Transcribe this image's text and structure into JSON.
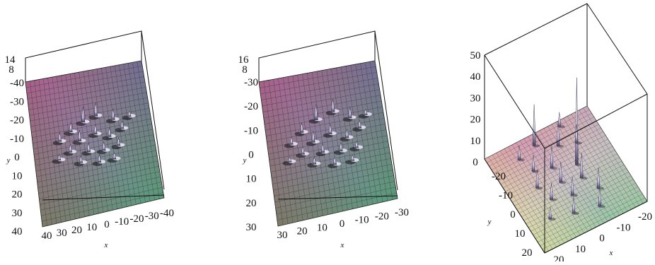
{
  "chart_data": [
    {
      "type": "surface3d",
      "xlabel": "x",
      "ylabel": "y",
      "x_ticks": [
        "40",
        "30",
        "20",
        "10",
        "0",
        "-10",
        "-20",
        "-30",
        "-40"
      ],
      "y_ticks": [
        "-40",
        "-30",
        "-20",
        "-10",
        "0",
        "10",
        "20",
        "30",
        "40"
      ],
      "z_ticks": [
        "14",
        "8"
      ],
      "xlim": [
        -40,
        40
      ],
      "ylim": [
        -40,
        40
      ],
      "zlim": [
        0,
        14
      ],
      "peaks": [
        {
          "x": 5,
          "y": -12,
          "z": 14
        },
        {
          "x": -4,
          "y": -14,
          "z": 12
        },
        {
          "x": -15,
          "y": -10,
          "z": 10
        },
        {
          "x": 14,
          "y": -8,
          "z": 9
        },
        {
          "x": 22,
          "y": -4,
          "z": 8
        },
        {
          "x": 9,
          "y": -2,
          "z": 10
        },
        {
          "x": -2,
          "y": -4,
          "z": 9
        },
        {
          "x": -11,
          "y": -1,
          "z": 8
        },
        {
          "x": -20,
          "y": -4,
          "z": 7
        },
        {
          "x": 16,
          "y": 3,
          "z": 7
        },
        {
          "x": 4,
          "y": 5,
          "z": 8
        },
        {
          "x": -6,
          "y": 6,
          "z": 8
        },
        {
          "x": -16,
          "y": 5,
          "z": 7
        },
        {
          "x": 10,
          "y": 10,
          "z": 6
        },
        {
          "x": -2,
          "y": 12,
          "z": 7
        },
        {
          "x": -12,
          "y": 12,
          "z": 6
        },
        {
          "x": 24,
          "y": 6,
          "z": 5
        },
        {
          "x": -26,
          "y": -10,
          "z": 5
        }
      ]
    },
    {
      "type": "surface3d",
      "xlabel": "x",
      "ylabel": "y",
      "x_ticks": [
        "30",
        "20",
        "10",
        "0",
        "-10",
        "-20",
        "-30"
      ],
      "y_ticks": [
        "-30",
        "-20",
        "-10",
        "0",
        "10",
        "20",
        "30"
      ],
      "z_ticks": [
        "16",
        "8"
      ],
      "xlim": [
        -30,
        30
      ],
      "ylim": [
        -30,
        30
      ],
      "zlim": [
        0,
        16
      ],
      "peaks": [
        {
          "x": 4,
          "y": -10,
          "z": 16
        },
        {
          "x": -5,
          "y": -12,
          "z": 13
        },
        {
          "x": -13,
          "y": -8,
          "z": 11
        },
        {
          "x": 12,
          "y": -6,
          "z": 10
        },
        {
          "x": 18,
          "y": -2,
          "z": 8
        },
        {
          "x": 7,
          "y": -1,
          "z": 12
        },
        {
          "x": -2,
          "y": -3,
          "z": 10
        },
        {
          "x": -10,
          "y": 0,
          "z": 9
        },
        {
          "x": -17,
          "y": -3,
          "z": 8
        },
        {
          "x": 13,
          "y": 3,
          "z": 8
        },
        {
          "x": 3,
          "y": 4,
          "z": 9
        },
        {
          "x": -6,
          "y": 5,
          "z": 9
        },
        {
          "x": -14,
          "y": 5,
          "z": 7
        },
        {
          "x": 8,
          "y": 8,
          "z": 7
        },
        {
          "x": -2,
          "y": 10,
          "z": 8
        },
        {
          "x": -11,
          "y": 10,
          "z": 6
        },
        {
          "x": 20,
          "y": 5,
          "z": 5
        },
        {
          "x": -21,
          "y": -8,
          "z": 6
        }
      ]
    },
    {
      "type": "surface3d",
      "xlabel": "x",
      "ylabel": "y",
      "x_ticks": [
        "20",
        "10",
        "0",
        "-10",
        "-20"
      ],
      "y_ticks": [
        "-20",
        "-10",
        "0",
        "10",
        "20"
      ],
      "z_ticks": [
        "0",
        "10",
        "20",
        "30",
        "40",
        "50"
      ],
      "xlim": [
        -20,
        20
      ],
      "ylim": [
        -20,
        20
      ],
      "zlim": [
        0,
        50
      ],
      "peaks": [
        {
          "x": 3,
          "y": -6,
          "z": 42
        },
        {
          "x": 16,
          "y": 3,
          "z": 20
        },
        {
          "x": 12,
          "y": -4,
          "z": 12
        },
        {
          "x": 6,
          "y": 2,
          "z": 11
        },
        {
          "x": -2,
          "y": -5,
          "z": 12
        },
        {
          "x": -8,
          "y": -8,
          "z": 10
        },
        {
          "x": -14,
          "y": -5,
          "z": 9
        },
        {
          "x": 0,
          "y": 2,
          "z": 10
        },
        {
          "x": -6,
          "y": 1,
          "z": 9
        },
        {
          "x": -12,
          "y": 4,
          "z": 8
        },
        {
          "x": 8,
          "y": 8,
          "z": 8
        },
        {
          "x": 2,
          "y": 10,
          "z": 9
        },
        {
          "x": -4,
          "y": 8,
          "z": 8
        },
        {
          "x": 10,
          "y": -10,
          "z": 9
        },
        {
          "x": 14,
          "y": 10,
          "z": 7
        },
        {
          "x": -10,
          "y": 12,
          "z": 6
        },
        {
          "x": 18,
          "y": -8,
          "z": 7
        }
      ]
    }
  ]
}
